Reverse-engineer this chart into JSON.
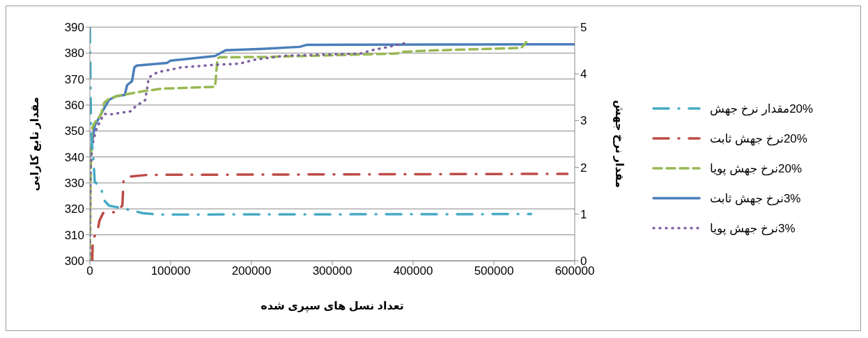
{
  "chart_data": {
    "type": "line",
    "xlabel": "تعداد نسل های سپری شده",
    "ylabel": "مقدار تابع کارایی",
    "y2label": "مقدار نرخ جهش",
    "xlim": [
      0,
      600000
    ],
    "xticks": [
      0,
      100000,
      200000,
      300000,
      400000,
      500000,
      600000
    ],
    "ylim": [
      300,
      390
    ],
    "yticks": [
      300,
      310,
      320,
      330,
      340,
      350,
      360,
      370,
      380,
      390
    ],
    "y2lim": [
      0,
      5
    ],
    "y2ticks": [
      0,
      1,
      2,
      3,
      4,
      5
    ],
    "grid": "y",
    "legend": "right",
    "marker": "none",
    "series": [
      {
        "name": "3%نرخ جهش ثابت",
        "color": "#4a7ebb",
        "line_style": "solid",
        "x": [
          0,
          6000,
          16400,
          23800,
          32800,
          43200,
          46200,
          52200,
          55100,
          58100,
          95400,
          99800,
          155000,
          168000,
          214000,
          259500,
          268600,
          600000
        ],
        "values": [
          340,
          352,
          358,
          362,
          363.4,
          363.9,
          367.7,
          369.2,
          374.5,
          375.2,
          376.2,
          377.1,
          378.9,
          381.1,
          381.6,
          382.4,
          383.2,
          383.4
        ]
      },
      {
        "name": "20%نرخ جهش ثابت",
        "color": "#be4b48",
        "line_style": "dashdot",
        "x": [
          3000,
          3600,
          9000,
          11900,
          16400,
          32800,
          40200,
          41700,
          47700,
          71500,
          591000
        ],
        "values": [
          300,
          308.7,
          310.6,
          315.5,
          318.4,
          318.8,
          321.3,
          331,
          332.4,
          333.1,
          333.5
        ]
      },
      {
        "name": "20%نرخ جهش پویا",
        "color": "#98b954",
        "line_style": "dashed",
        "x": [
          0,
          1000,
          3000,
          6000,
          13400,
          17900,
          23800,
          35800,
          65600,
          89400,
          155000,
          157900,
          160900,
          214600,
          378900,
          387800,
          423600,
          534000,
          540000
        ],
        "values": [
          300,
          335,
          351.3,
          353.2,
          356,
          361,
          362.4,
          363.6,
          365.3,
          366.3,
          367,
          377.9,
          378.4,
          378.5,
          379.8,
          380.5,
          381,
          382,
          384.2
        ]
      },
      {
        "name": "3%نرخ جهش پویا",
        "color": "#7d60a0",
        "line_style": "dotted",
        "x": [
          0,
          900,
          3000,
          7500,
          13400,
          17900,
          23800,
          50700,
          56600,
          68500,
          73000,
          83400,
          113200,
          155000,
          185000,
          203000,
          241900,
          334600,
          349000,
          370000,
          391000
        ],
        "values": [
          300,
          334.8,
          344.5,
          350.3,
          354.2,
          356.6,
          356.3,
          357.6,
          359.5,
          361.9,
          370.6,
          372.6,
          374.5,
          375.5,
          375.9,
          377.4,
          379,
          379.8,
          381.1,
          382.4,
          383.9
        ]
      },
      {
        "name": "20%مقدار نرخ جهش",
        "color": "#46aac5",
        "line_style": "dashdot",
        "axis": "y2",
        "x": [
          0,
          1500,
          4500,
          6000,
          13400,
          17900,
          23800,
          41700,
          65600,
          83400,
          546000
        ],
        "values": [
          5,
          2.74,
          2.15,
          1.69,
          1.58,
          1.29,
          1.18,
          1.12,
          1.02,
          0.99,
          1
        ]
      }
    ]
  }
}
